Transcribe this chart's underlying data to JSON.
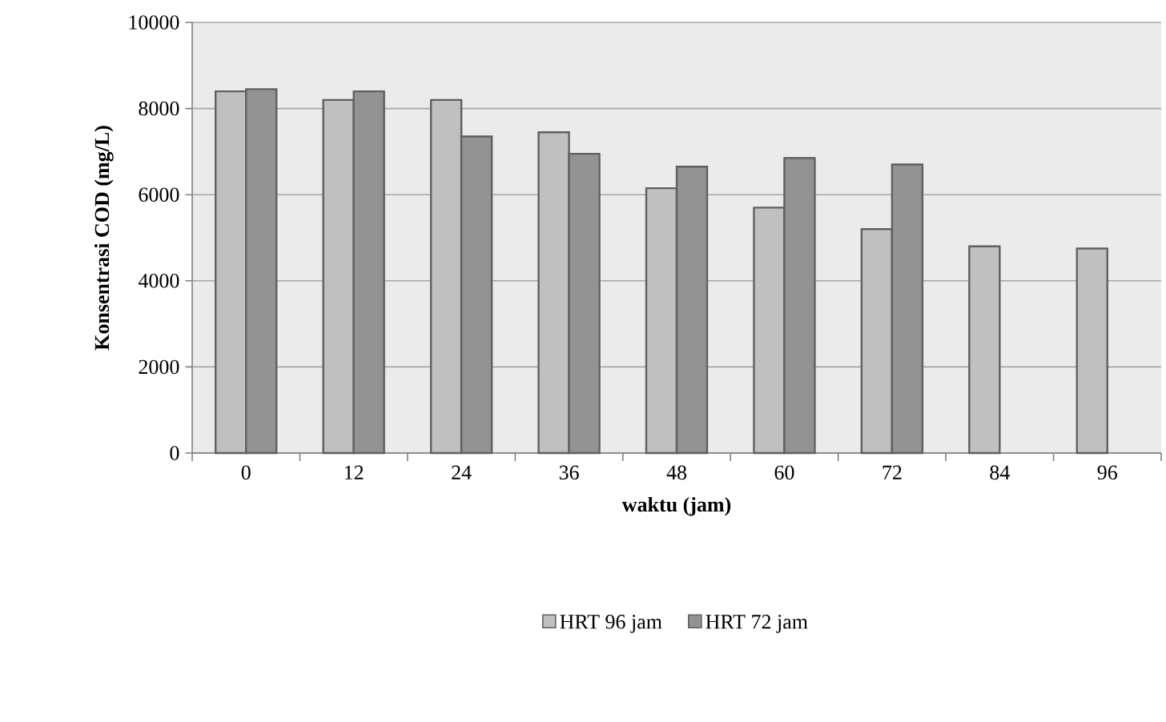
{
  "chart_data": {
    "type": "bar",
    "xlabel": "waktu (jam)",
    "ylabel": "Konsentrasi COD (mg/L)",
    "categories": [
      "0",
      "12",
      "24",
      "36",
      "48",
      "60",
      "72",
      "84",
      "96"
    ],
    "series": [
      {
        "name": "HRT 96 jam",
        "color": "#c0c0c0",
        "values": [
          8400,
          8200,
          8200,
          7450,
          6150,
          5700,
          5200,
          4800,
          4750
        ]
      },
      {
        "name": "HRT 72 jam",
        "color": "#939393",
        "values": [
          8450,
          8400,
          7350,
          6950,
          6650,
          6850,
          6700,
          null,
          null
        ]
      }
    ],
    "ylim": [
      0,
      10000
    ],
    "yticks": [
      0,
      2000,
      4000,
      6000,
      8000,
      10000
    ],
    "grid": "y",
    "legend": "bottom"
  }
}
